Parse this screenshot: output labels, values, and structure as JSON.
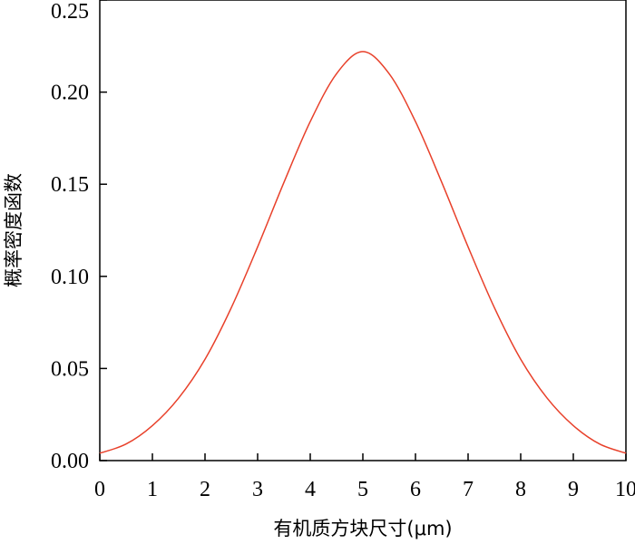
{
  "chart_data": {
    "type": "line",
    "title": "",
    "xlabel": "有机质方块尺寸(μm)",
    "ylabel": "概率密度函数",
    "xlim": [
      0,
      10
    ],
    "ylim": [
      0,
      0.25
    ],
    "xticks": [
      "0",
      "1",
      "2",
      "3",
      "4",
      "5",
      "6",
      "7",
      "8",
      "9",
      "10"
    ],
    "yticks": [
      "0.00",
      "0.05",
      "0.10",
      "0.15",
      "0.20",
      "0.25"
    ],
    "grid": false,
    "legend": "none",
    "series": [
      {
        "color": "#e8402a",
        "x": [
          0,
          0.5,
          1,
          1.5,
          2,
          2.5,
          3,
          3.5,
          4,
          4.5,
          5,
          5.5,
          6,
          6.5,
          7,
          7.5,
          8,
          8.5,
          9,
          9.5,
          10
        ],
        "y": [
          0.004,
          0.009,
          0.019,
          0.034,
          0.055,
          0.083,
          0.116,
          0.151,
          0.184,
          0.21,
          0.222,
          0.21,
          0.184,
          0.151,
          0.116,
          0.083,
          0.055,
          0.034,
          0.019,
          0.009,
          0.004
        ]
      }
    ]
  }
}
